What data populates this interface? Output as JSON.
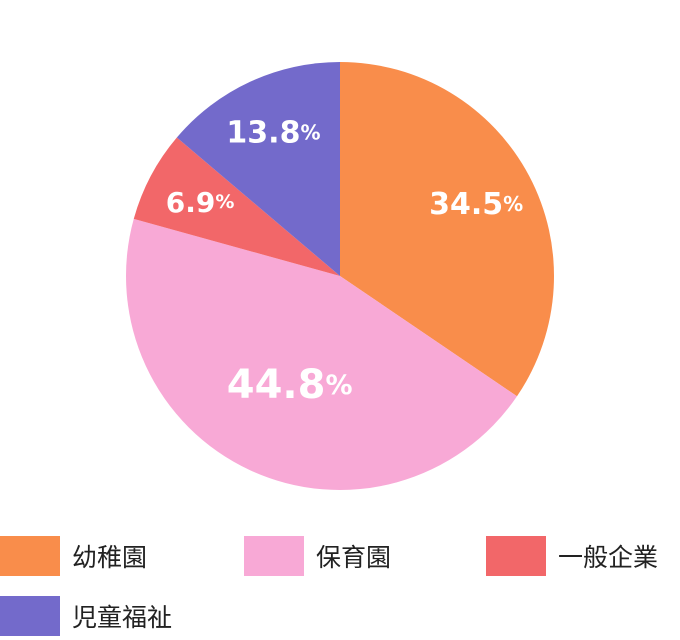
{
  "chart_data": {
    "type": "pie",
    "categories": [
      "幼稚園",
      "保育園",
      "一般企業",
      "児童福祉"
    ],
    "values": [
      34.5,
      44.8,
      6.9,
      13.8
    ],
    "value_labels": [
      "34.5",
      "44.8",
      "6.9",
      "13.8"
    ],
    "unit": "%",
    "colors": [
      "#F98D4B",
      "#F8A9D6",
      "#F26769",
      "#736ACB"
    ],
    "start_angle_deg": 0,
    "direction": "clockwise",
    "legend_position": "bottom"
  }
}
